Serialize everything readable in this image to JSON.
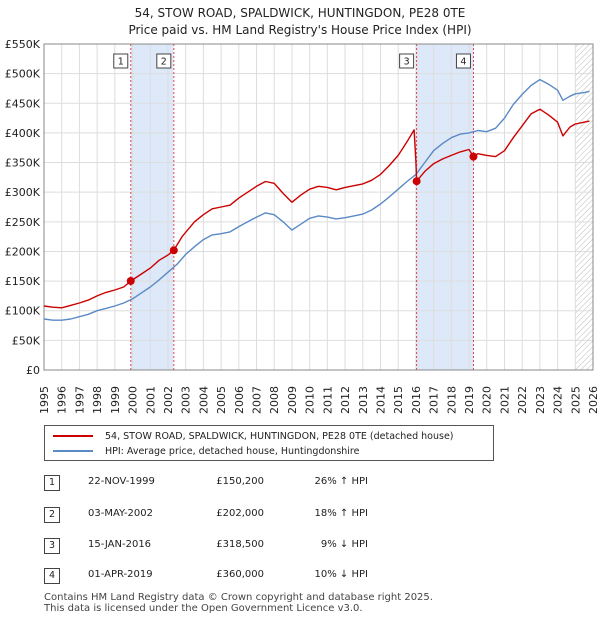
{
  "header": {
    "title_line1": "54, STOW ROAD, SPALDWICK, HUNTINGDON, PE28 0TE",
    "title_line2": "Price paid vs. HM Land Registry's House Price Index (HPI)"
  },
  "colors": {
    "property": "#cc0000",
    "hpi": "#5a8ac6",
    "shade": "#dde8f8",
    "marker_line": "#dd4444"
  },
  "legend": {
    "property_label": "54, STOW ROAD, SPALDWICK, HUNTINGDON, PE28 0TE (detached house)",
    "hpi_label": "HPI: Average price, detached house, Huntingdonshire"
  },
  "sales": [
    {
      "num": "1",
      "date": "22-NOV-1999",
      "price": "£150,200",
      "hpi": "26% ↑ HPI"
    },
    {
      "num": "2",
      "date": "03-MAY-2002",
      "price": "£202,000",
      "hpi": "18% ↑ HPI"
    },
    {
      "num": "3",
      "date": "15-JAN-2016",
      "price": "£318,500",
      "hpi": "9% ↓ HPI"
    },
    {
      "num": "4",
      "date": "01-APR-2019",
      "price": "£360,000",
      "hpi": "10% ↓ HPI"
    }
  ],
  "footer": {
    "line1": "Contains HM Land Registry data © Crown copyright and database right 2025.",
    "line2": "This data is licensed under the Open Government Licence v3.0."
  },
  "chart_data": {
    "type": "line",
    "title": "54, STOW ROAD, SPALDWICK, HUNTINGDON, PE28 0TE",
    "subtitle": "Price paid vs. HM Land Registry's House Price Index (HPI)",
    "xlabel": "",
    "ylabel": "",
    "xlim": [
      1995,
      2026
    ],
    "ylim": [
      0,
      550000
    ],
    "grid": true,
    "y_ticks": [
      {
        "value": 0,
        "label": "£0"
      },
      {
        "value": 50000,
        "label": "£50K"
      },
      {
        "value": 100000,
        "label": "£100K"
      },
      {
        "value": 150000,
        "label": "£150K"
      },
      {
        "value": 200000,
        "label": "£200K"
      },
      {
        "value": 250000,
        "label": "£250K"
      },
      {
        "value": 300000,
        "label": "£300K"
      },
      {
        "value": 350000,
        "label": "£350K"
      },
      {
        "value": 400000,
        "label": "£400K"
      },
      {
        "value": 450000,
        "label": "£450K"
      },
      {
        "value": 500000,
        "label": "£500K"
      },
      {
        "value": 550000,
        "label": "£550K"
      }
    ],
    "x_ticks": [
      "1995",
      "1996",
      "1997",
      "1998",
      "1999",
      "2000",
      "2001",
      "2002",
      "2003",
      "2004",
      "2005",
      "2006",
      "2007",
      "2008",
      "2009",
      "2010",
      "2011",
      "2012",
      "2013",
      "2014",
      "2015",
      "2016",
      "2017",
      "2018",
      "2019",
      "2020",
      "2021",
      "2022",
      "2023",
      "2024",
      "2025",
      "2026"
    ],
    "shaded_ranges": [
      [
        1999.9,
        2002.3
      ],
      [
        2016.04,
        2019.25
      ]
    ],
    "hatched_from": 2025.0,
    "markers": [
      {
        "label": "1",
        "x": 1999.9,
        "y": 150200
      },
      {
        "label": "2",
        "x": 2002.33,
        "y": 202000
      },
      {
        "label": "3",
        "x": 2016.04,
        "y": 318500
      },
      {
        "label": "4",
        "x": 2019.25,
        "y": 360000
      }
    ],
    "series": [
      {
        "name": "54, STOW ROAD, SPALDWICK, HUNTINGDON, PE28 0TE (detached house)",
        "color": "#cc0000",
        "points": [
          [
            1995.0,
            108000
          ],
          [
            1995.5,
            106000
          ],
          [
            1996.0,
            105000
          ],
          [
            1996.5,
            109000
          ],
          [
            1997.0,
            113000
          ],
          [
            1997.5,
            118000
          ],
          [
            1998.0,
            125000
          ],
          [
            1998.5,
            131000
          ],
          [
            1999.0,
            135000
          ],
          [
            1999.5,
            140000
          ],
          [
            1999.9,
            150200
          ],
          [
            2000.5,
            162000
          ],
          [
            2001.0,
            172000
          ],
          [
            2001.5,
            185000
          ],
          [
            2002.0,
            194000
          ],
          [
            2002.33,
            202000
          ],
          [
            2002.8,
            225000
          ],
          [
            2003.5,
            250000
          ],
          [
            2004.0,
            262000
          ],
          [
            2004.5,
            272000
          ],
          [
            2005.0,
            275000
          ],
          [
            2005.5,
            278000
          ],
          [
            2006.0,
            290000
          ],
          [
            2006.5,
            300000
          ],
          [
            2007.0,
            310000
          ],
          [
            2007.5,
            318000
          ],
          [
            2008.0,
            315000
          ],
          [
            2008.5,
            298000
          ],
          [
            2009.0,
            283000
          ],
          [
            2009.5,
            295000
          ],
          [
            2010.0,
            305000
          ],
          [
            2010.5,
            310000
          ],
          [
            2011.0,
            308000
          ],
          [
            2011.5,
            304000
          ],
          [
            2012.0,
            308000
          ],
          [
            2012.5,
            311000
          ],
          [
            2013.0,
            314000
          ],
          [
            2013.5,
            320000
          ],
          [
            2014.0,
            330000
          ],
          [
            2014.5,
            345000
          ],
          [
            2015.0,
            362000
          ],
          [
            2015.5,
            385000
          ],
          [
            2015.9,
            405000
          ],
          [
            2016.0,
            352000
          ],
          [
            2016.04,
            318500
          ],
          [
            2016.5,
            335000
          ],
          [
            2017.0,
            348000
          ],
          [
            2017.5,
            356000
          ],
          [
            2018.0,
            362000
          ],
          [
            2018.5,
            368000
          ],
          [
            2019.0,
            372000
          ],
          [
            2019.25,
            360000
          ],
          [
            2019.5,
            365000
          ],
          [
            2020.0,
            362000
          ],
          [
            2020.5,
            360000
          ],
          [
            2021.0,
            370000
          ],
          [
            2021.5,
            392000
          ],
          [
            2022.0,
            412000
          ],
          [
            2022.5,
            432000
          ],
          [
            2023.0,
            440000
          ],
          [
            2023.5,
            430000
          ],
          [
            2024.0,
            418000
          ],
          [
            2024.3,
            395000
          ],
          [
            2024.7,
            410000
          ],
          [
            2025.0,
            415000
          ],
          [
            2025.5,
            418000
          ],
          [
            2025.8,
            420000
          ]
        ]
      },
      {
        "name": "HPI: Average price, detached house, Huntingdonshire",
        "color": "#5a8ac6",
        "points": [
          [
            1995.0,
            86000
          ],
          [
            1995.5,
            84000
          ],
          [
            1996.0,
            84000
          ],
          [
            1996.5,
            86000
          ],
          [
            1997.0,
            90000
          ],
          [
            1997.5,
            94000
          ],
          [
            1998.0,
            100000
          ],
          [
            1998.5,
            104000
          ],
          [
            1999.0,
            108000
          ],
          [
            1999.5,
            113000
          ],
          [
            2000.0,
            120000
          ],
          [
            2000.5,
            130000
          ],
          [
            2001.0,
            140000
          ],
          [
            2001.5,
            152000
          ],
          [
            2002.0,
            165000
          ],
          [
            2002.5,
            178000
          ],
          [
            2003.0,
            195000
          ],
          [
            2003.5,
            208000
          ],
          [
            2004.0,
            220000
          ],
          [
            2004.5,
            228000
          ],
          [
            2005.0,
            230000
          ],
          [
            2005.5,
            233000
          ],
          [
            2006.0,
            242000
          ],
          [
            2006.5,
            250000
          ],
          [
            2007.0,
            258000
          ],
          [
            2007.5,
            265000
          ],
          [
            2008.0,
            262000
          ],
          [
            2008.5,
            250000
          ],
          [
            2009.0,
            236000
          ],
          [
            2009.5,
            246000
          ],
          [
            2010.0,
            256000
          ],
          [
            2010.5,
            260000
          ],
          [
            2011.0,
            258000
          ],
          [
            2011.5,
            255000
          ],
          [
            2012.0,
            257000
          ],
          [
            2012.5,
            260000
          ],
          [
            2013.0,
            263000
          ],
          [
            2013.5,
            270000
          ],
          [
            2014.0,
            280000
          ],
          [
            2014.5,
            292000
          ],
          [
            2015.0,
            305000
          ],
          [
            2015.5,
            318000
          ],
          [
            2016.0,
            330000
          ],
          [
            2016.5,
            350000
          ],
          [
            2017.0,
            370000
          ],
          [
            2017.5,
            382000
          ],
          [
            2018.0,
            392000
          ],
          [
            2018.5,
            398000
          ],
          [
            2019.0,
            400000
          ],
          [
            2019.5,
            404000
          ],
          [
            2020.0,
            402000
          ],
          [
            2020.5,
            408000
          ],
          [
            2021.0,
            425000
          ],
          [
            2021.5,
            448000
          ],
          [
            2022.0,
            465000
          ],
          [
            2022.5,
            480000
          ],
          [
            2023.0,
            490000
          ],
          [
            2023.5,
            482000
          ],
          [
            2024.0,
            472000
          ],
          [
            2024.3,
            455000
          ],
          [
            2024.7,
            462000
          ],
          [
            2025.0,
            466000
          ],
          [
            2025.5,
            468000
          ],
          [
            2025.8,
            470000
          ]
        ]
      }
    ]
  }
}
